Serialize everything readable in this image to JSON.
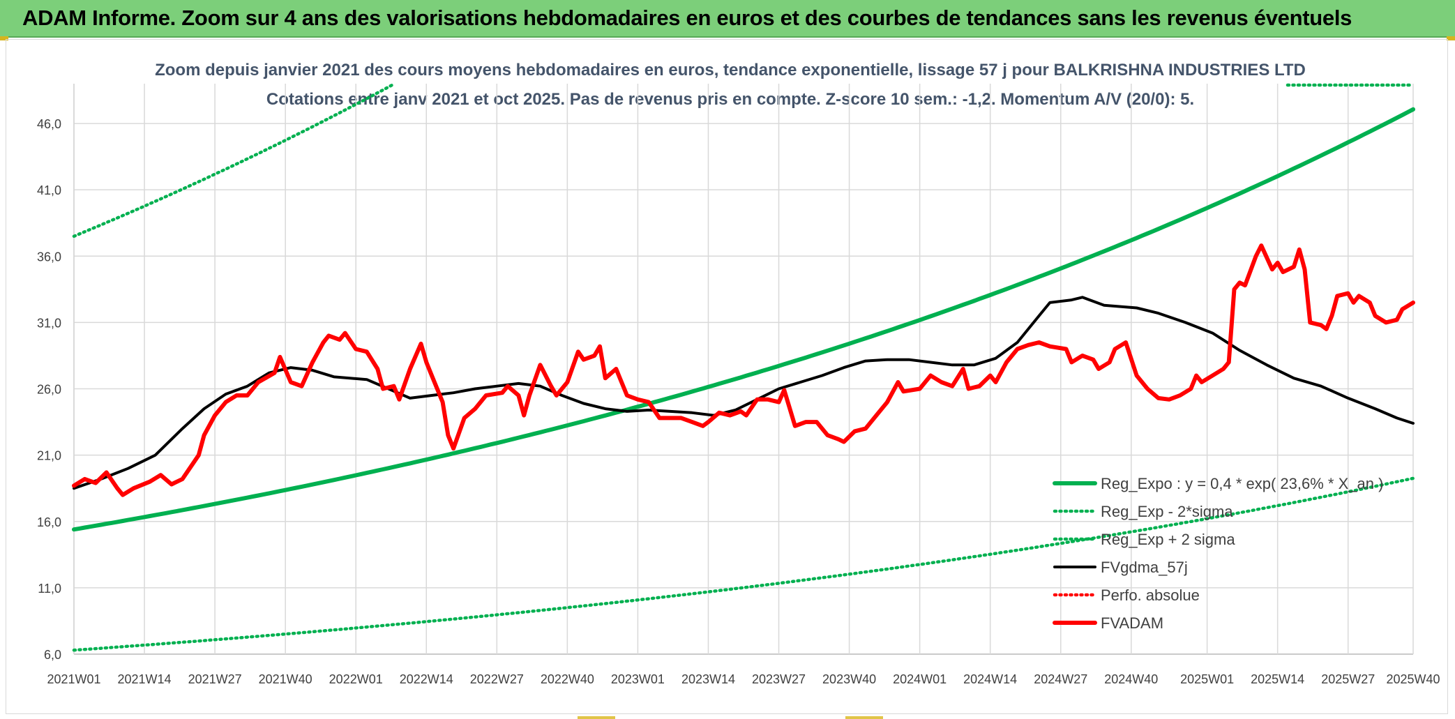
{
  "banner": {
    "title": "ADAM Informe. Zoom sur 4 ans des valorisations hebdomadaires en euros et des courbes de tendances sans les revenus éventuels"
  },
  "chart_data": {
    "type": "line",
    "title": "Zoom depuis janvier 2021 des cours moyens hebdomadaires en euros, tendance exponentielle, lissage 57 j pour BALKRISHNA INDUSTRIES LTD",
    "subtitle": "Cotations entre janv 2021 et oct 2025. Pas de revenus pris en compte. Z-score 10 sem.: -1,2. Momentum A/V (20/0): 5.",
    "xlabel": "",
    "ylabel": "",
    "ylim": [
      6.0,
      49.0
    ],
    "yticks": [
      "6,0",
      "11,0",
      "16,0",
      "21,0",
      "26,0",
      "31,0",
      "36,0",
      "41,0",
      "46,0"
    ],
    "ytick_values": [
      6,
      11,
      16,
      21,
      26,
      31,
      36,
      41,
      46
    ],
    "grid": true,
    "legend_position": "bottom-right",
    "x_count": 248,
    "xticks": [
      "2021W01",
      "2021W14",
      "2021W27",
      "2021W40",
      "2022W01",
      "2022W14",
      "2022W27",
      "2022W40",
      "2023W01",
      "2023W14",
      "2023W27",
      "2023W40",
      "2024W01",
      "2024W14",
      "2024W27",
      "2024W40",
      "2025W01",
      "2025W14",
      "2025W27",
      "2025W40"
    ],
    "xtick_index": [
      0,
      13,
      26,
      39,
      52,
      65,
      78,
      91,
      104,
      117,
      130,
      143,
      156,
      169,
      182,
      195,
      209,
      222,
      235,
      247
    ],
    "colors": {
      "reg": "#00b050",
      "fvadam": "#ff0000",
      "fvgdma": "#000000",
      "perfo": "#ff0000",
      "grid": "#d9d9d9"
    },
    "series": [
      {
        "name": "Reg_Expo : y = 0,4 * exp( 23,6% *  X_an )",
        "style": "solid-thick",
        "color": "#00b050",
        "formula": {
          "a": 15.4,
          "rate": 0.236,
          "points_per_year": 52.18
        }
      },
      {
        "name": "Reg_Exp - 2*sigma",
        "style": "dotted",
        "color": "#00b050",
        "formula": {
          "a": 6.3,
          "rate": 0.236,
          "points_per_year": 52.18
        }
      },
      {
        "name": "Reg_Exp + 2 sigma",
        "style": "dotted",
        "color": "#00b050",
        "formula": {
          "a": 37.5,
          "rate": 0.236,
          "points_per_year": 52.18
        }
      },
      {
        "name": "FVgdma_57j",
        "style": "solid",
        "color": "#000000",
        "points": [
          [
            0,
            18.5
          ],
          [
            5,
            19.2
          ],
          [
            10,
            20.0
          ],
          [
            15,
            21.0
          ],
          [
            20,
            23.0
          ],
          [
            24,
            24.5
          ],
          [
            28,
            25.6
          ],
          [
            32,
            26.2
          ],
          [
            36,
            27.2
          ],
          [
            40,
            27.6
          ],
          [
            44,
            27.4
          ],
          [
            48,
            26.9
          ],
          [
            54,
            26.7
          ],
          [
            58,
            26.0
          ],
          [
            62,
            25.3
          ],
          [
            66,
            25.5
          ],
          [
            70,
            25.7
          ],
          [
            74,
            26.0
          ],
          [
            78,
            26.2
          ],
          [
            82,
            26.4
          ],
          [
            86,
            26.2
          ],
          [
            90,
            25.5
          ],
          [
            94,
            24.9
          ],
          [
            98,
            24.5
          ],
          [
            102,
            24.3
          ],
          [
            106,
            24.4
          ],
          [
            110,
            24.3
          ],
          [
            114,
            24.2
          ],
          [
            118,
            24.0
          ],
          [
            122,
            24.4
          ],
          [
            126,
            25.2
          ],
          [
            130,
            26.0
          ],
          [
            134,
            26.5
          ],
          [
            138,
            27.0
          ],
          [
            142,
            27.6
          ],
          [
            146,
            28.1
          ],
          [
            150,
            28.2
          ],
          [
            154,
            28.2
          ],
          [
            158,
            28.0
          ],
          [
            162,
            27.8
          ],
          [
            166,
            27.8
          ],
          [
            170,
            28.3
          ],
          [
            174,
            29.5
          ],
          [
            178,
            31.5
          ],
          [
            180,
            32.5
          ],
          [
            184,
            32.7
          ],
          [
            186,
            32.9
          ],
          [
            190,
            32.3
          ],
          [
            196,
            32.1
          ],
          [
            200,
            31.7
          ],
          [
            205,
            31.0
          ],
          [
            210,
            30.2
          ],
          [
            215,
            28.9
          ],
          [
            220,
            27.8
          ],
          [
            225,
            26.8
          ],
          [
            230,
            26.2
          ],
          [
            235,
            25.3
          ],
          [
            240,
            24.5
          ],
          [
            244,
            23.8
          ],
          [
            247,
            23.4
          ]
        ]
      },
      {
        "name": "Perfo. absolue",
        "style": "dotted",
        "color": "#ff0000",
        "points": []
      },
      {
        "name": "FVADAM",
        "style": "solid-thick",
        "color": "#ff0000",
        "points": [
          [
            0,
            18.7
          ],
          [
            2,
            19.2
          ],
          [
            4,
            18.9
          ],
          [
            6,
            19.7
          ],
          [
            8,
            18.5
          ],
          [
            9,
            18.0
          ],
          [
            11,
            18.5
          ],
          [
            14,
            19.0
          ],
          [
            16,
            19.5
          ],
          [
            18,
            18.8
          ],
          [
            20,
            19.2
          ],
          [
            23,
            21.0
          ],
          [
            24,
            22.5
          ],
          [
            26,
            24.0
          ],
          [
            28,
            25.0
          ],
          [
            30,
            25.5
          ],
          [
            32,
            25.5
          ],
          [
            34,
            26.5
          ],
          [
            37,
            27.2
          ],
          [
            38,
            28.4
          ],
          [
            40,
            26.5
          ],
          [
            42,
            26.2
          ],
          [
            44,
            28.0
          ],
          [
            46,
            29.5
          ],
          [
            47,
            30.0
          ],
          [
            49,
            29.7
          ],
          [
            50,
            30.2
          ],
          [
            52,
            29.0
          ],
          [
            54,
            28.8
          ],
          [
            56,
            27.5
          ],
          [
            57,
            26.0
          ],
          [
            59,
            26.2
          ],
          [
            60,
            25.2
          ],
          [
            62,
            27.5
          ],
          [
            64,
            29.4
          ],
          [
            65,
            28.0
          ],
          [
            66,
            27.0
          ],
          [
            68,
            25.0
          ],
          [
            69,
            22.5
          ],
          [
            70,
            21.5
          ],
          [
            72,
            23.8
          ],
          [
            74,
            24.5
          ],
          [
            76,
            25.5
          ],
          [
            79,
            25.7
          ],
          [
            80,
            26.2
          ],
          [
            82,
            25.5
          ],
          [
            83,
            24.0
          ],
          [
            84,
            25.5
          ],
          [
            86,
            27.8
          ],
          [
            88,
            26.2
          ],
          [
            89,
            25.5
          ],
          [
            91,
            26.5
          ],
          [
            93,
            28.8
          ],
          [
            94,
            28.2
          ],
          [
            96,
            28.5
          ],
          [
            97,
            29.2
          ],
          [
            98,
            26.8
          ],
          [
            100,
            27.5
          ],
          [
            102,
            25.5
          ],
          [
            104,
            25.2
          ],
          [
            106,
            25.0
          ],
          [
            108,
            23.8
          ],
          [
            110,
            23.8
          ],
          [
            112,
            23.8
          ],
          [
            114,
            23.5
          ],
          [
            116,
            23.2
          ],
          [
            117,
            23.5
          ],
          [
            119,
            24.2
          ],
          [
            121,
            24.0
          ],
          [
            123,
            24.3
          ],
          [
            124,
            24.0
          ],
          [
            126,
            25.2
          ],
          [
            128,
            25.2
          ],
          [
            130,
            25.0
          ],
          [
            131,
            25.9
          ],
          [
            133,
            23.2
          ],
          [
            135,
            23.5
          ],
          [
            137,
            23.5
          ],
          [
            139,
            22.5
          ],
          [
            141,
            22.2
          ],
          [
            142,
            22.0
          ],
          [
            144,
            22.8
          ],
          [
            146,
            23.0
          ],
          [
            148,
            24.0
          ],
          [
            150,
            25.0
          ],
          [
            152,
            26.5
          ],
          [
            153,
            25.8
          ],
          [
            156,
            26.0
          ],
          [
            158,
            27.0
          ],
          [
            160,
            26.5
          ],
          [
            162,
            26.2
          ],
          [
            164,
            27.5
          ],
          [
            165,
            26.0
          ],
          [
            167,
            26.2
          ],
          [
            169,
            27.0
          ],
          [
            170,
            26.5
          ],
          [
            172,
            28.0
          ],
          [
            174,
            29.0
          ],
          [
            176,
            29.3
          ],
          [
            178,
            29.5
          ],
          [
            180,
            29.2
          ],
          [
            183,
            29.0
          ],
          [
            184,
            28.0
          ],
          [
            186,
            28.5
          ],
          [
            188,
            28.2
          ],
          [
            189,
            27.5
          ],
          [
            191,
            28.0
          ],
          [
            192,
            29.0
          ],
          [
            194,
            29.5
          ],
          [
            196,
            27.0
          ],
          [
            198,
            26.0
          ],
          [
            200,
            25.3
          ],
          [
            202,
            25.2
          ],
          [
            204,
            25.5
          ],
          [
            206,
            26.0
          ],
          [
            207,
            27.0
          ],
          [
            208,
            26.5
          ],
          [
            210,
            27.0
          ],
          [
            212,
            27.5
          ],
          [
            213,
            28.0
          ],
          [
            214,
            33.5
          ],
          [
            215,
            34.0
          ],
          [
            216,
            33.8
          ],
          [
            218,
            36.0
          ],
          [
            219,
            36.8
          ],
          [
            221,
            35.0
          ],
          [
            222,
            35.5
          ],
          [
            223,
            34.8
          ],
          [
            225,
            35.2
          ],
          [
            226,
            36.5
          ],
          [
            227,
            35.0
          ],
          [
            228,
            31.0
          ],
          [
            230,
            30.8
          ],
          [
            231,
            30.5
          ],
          [
            232,
            31.5
          ],
          [
            233,
            33.0
          ],
          [
            235,
            33.2
          ],
          [
            236,
            32.5
          ],
          [
            237,
            33.0
          ],
          [
            239,
            32.5
          ],
          [
            240,
            31.5
          ],
          [
            242,
            31.0
          ],
          [
            244,
            31.2
          ],
          [
            245,
            32.0
          ],
          [
            247,
            32.5
          ]
        ]
      }
    ]
  }
}
